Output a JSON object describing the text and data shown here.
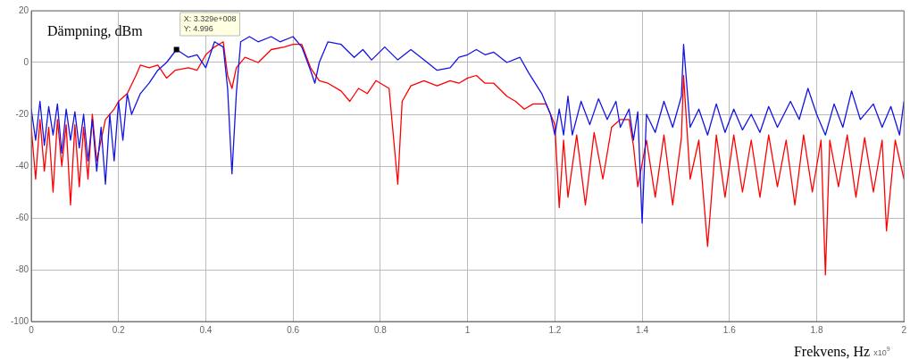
{
  "chart_data": {
    "type": "line",
    "xlabel": "Frekvens, Hz",
    "ylabel": "Dämpning, dBm",
    "xlim": [
      0,
      2
    ],
    "xticks": [
      0,
      0.2,
      0.4,
      0.6,
      0.8,
      1,
      1.2,
      1.4,
      1.6,
      1.8,
      2
    ],
    "ylim": [
      -100,
      20
    ],
    "yticks": [
      -100,
      -80,
      -60,
      -40,
      -20,
      0,
      20
    ],
    "grid": true,
    "legend": false,
    "marker": "none",
    "line_style": "solid",
    "annotations": [
      {
        "text": "X: 3.329e+008\nY: 4.996",
        "x": 0.3329,
        "y": 4.996
      },
      "x10$^{9}$"
    ],
    "series": [
      {
        "color": "#1414e6",
        "x": [
          0,
          0.01,
          0.02,
          0.03,
          0.04,
          0.05,
          0.06,
          0.07,
          0.08,
          0.09,
          0.1,
          0.11,
          0.12,
          0.13,
          0.14,
          0.15,
          0.16,
          0.17,
          0.18,
          0.19,
          0.2,
          0.21,
          0.22,
          0.23,
          0.25,
          0.27,
          0.29,
          0.31,
          0.3329,
          0.36,
          0.38,
          0.4,
          0.42,
          0.44,
          0.45,
          0.46,
          0.47,
          0.48,
          0.5,
          0.52,
          0.55,
          0.57,
          0.6,
          0.62,
          0.64,
          0.65,
          0.66,
          0.68,
          0.71,
          0.74,
          0.76,
          0.78,
          0.81,
          0.84,
          0.87,
          0.9,
          0.93,
          0.96,
          0.98,
          1,
          1.02,
          1.04,
          1.06,
          1.09,
          1.12,
          1.14,
          1.17,
          1.19,
          1.2,
          1.21,
          1.22,
          1.23,
          1.24,
          1.26,
          1.28,
          1.3,
          1.32,
          1.34,
          1.35,
          1.37,
          1.38,
          1.39,
          1.4,
          1.41,
          1.43,
          1.45,
          1.47,
          1.49,
          1.495,
          1.51,
          1.53,
          1.55,
          1.57,
          1.59,
          1.61,
          1.63,
          1.65,
          1.67,
          1.69,
          1.71,
          1.74,
          1.76,
          1.78,
          1.8,
          1.82,
          1.84,
          1.86,
          1.88,
          1.9,
          1.93,
          1.95,
          1.97,
          1.99,
          2
        ],
        "values": [
          -18,
          -30,
          -15,
          -32,
          -17,
          -28,
          -16,
          -35,
          -18,
          -30,
          -19,
          -33,
          -20,
          -38,
          -22,
          -42,
          -25,
          -47,
          -20,
          -38,
          -15,
          -30,
          -12,
          -20,
          -12,
          -8,
          -3,
          0,
          4.996,
          2,
          3,
          -2,
          8,
          6,
          -10,
          -43,
          -12,
          8,
          10,
          8,
          10,
          8,
          10,
          6,
          -3,
          -8,
          0,
          8,
          7,
          2,
          5,
          1,
          6,
          1,
          5,
          1,
          -3,
          -2,
          2,
          3,
          5,
          3,
          4,
          0,
          2,
          -4,
          -12,
          -20,
          -28,
          -18,
          -28,
          -13,
          -28,
          -15,
          -24,
          -14,
          -22,
          -15,
          -25,
          -18,
          -30,
          -19,
          -62,
          -20,
          -27,
          -15,
          -25,
          -13,
          7,
          -25,
          -18,
          -28,
          -16,
          -27,
          -18,
          -26,
          -20,
          -27,
          -17,
          -25,
          -15,
          -22,
          -10,
          -20,
          -28,
          -16,
          -25,
          -11,
          -22,
          -16,
          -25,
          -17,
          -28,
          -15
        ]
      },
      {
        "color": "#ff0000",
        "x": [
          0,
          0.01,
          0.02,
          0.03,
          0.04,
          0.05,
          0.06,
          0.07,
          0.08,
          0.09,
          0.1,
          0.11,
          0.12,
          0.13,
          0.14,
          0.15,
          0.17,
          0.19,
          0.2,
          0.22,
          0.24,
          0.25,
          0.27,
          0.29,
          0.31,
          0.33,
          0.36,
          0.38,
          0.4,
          0.42,
          0.44,
          0.45,
          0.46,
          0.47,
          0.49,
          0.52,
          0.55,
          0.58,
          0.6,
          0.62,
          0.64,
          0.66,
          0.68,
          0.71,
          0.73,
          0.75,
          0.77,
          0.79,
          0.82,
          0.84,
          0.85,
          0.87,
          0.9,
          0.93,
          0.96,
          0.98,
          1,
          1.02,
          1.04,
          1.06,
          1.09,
          1.11,
          1.13,
          1.15,
          1.18,
          1.2,
          1.21,
          1.22,
          1.23,
          1.25,
          1.27,
          1.29,
          1.31,
          1.33,
          1.35,
          1.37,
          1.38,
          1.39,
          1.41,
          1.43,
          1.45,
          1.47,
          1.49,
          1.495,
          1.51,
          1.53,
          1.55,
          1.57,
          1.59,
          1.61,
          1.63,
          1.65,
          1.67,
          1.69,
          1.71,
          1.73,
          1.75,
          1.77,
          1.79,
          1.81,
          1.82,
          1.83,
          1.85,
          1.87,
          1.89,
          1.91,
          1.93,
          1.95,
          1.96,
          1.98,
          2
        ],
        "values": [
          -25,
          -45,
          -22,
          -42,
          -25,
          -50,
          -22,
          -40,
          -24,
          -55,
          -24,
          -48,
          -25,
          -45,
          -20,
          -38,
          -22,
          -18,
          -15,
          -12,
          -5,
          -1,
          -2,
          -1,
          -6,
          -3,
          -2,
          -3,
          3,
          6,
          8,
          -5,
          -10,
          -2,
          2,
          0,
          5,
          6,
          7,
          7,
          -2,
          -7,
          -8,
          -11,
          -15,
          -10,
          -12,
          -7,
          -10,
          -47,
          -15,
          -9,
          -7,
          -9,
          -7,
          -8,
          -6,
          -5,
          -8,
          -8,
          -13,
          -15,
          -18,
          -16,
          -16,
          -24,
          -56,
          -30,
          -52,
          -28,
          -55,
          -27,
          -45,
          -25,
          -22,
          -22,
          -32,
          -48,
          -30,
          -52,
          -28,
          -55,
          -29,
          -5,
          -45,
          -30,
          -71,
          -28,
          -52,
          -28,
          -50,
          -30,
          -52,
          -28,
          -48,
          -30,
          -55,
          -28,
          -50,
          -30,
          -82,
          -30,
          -48,
          -28,
          -52,
          -29,
          -50,
          -30,
          -65,
          -30,
          -45
        ]
      }
    ]
  }
}
